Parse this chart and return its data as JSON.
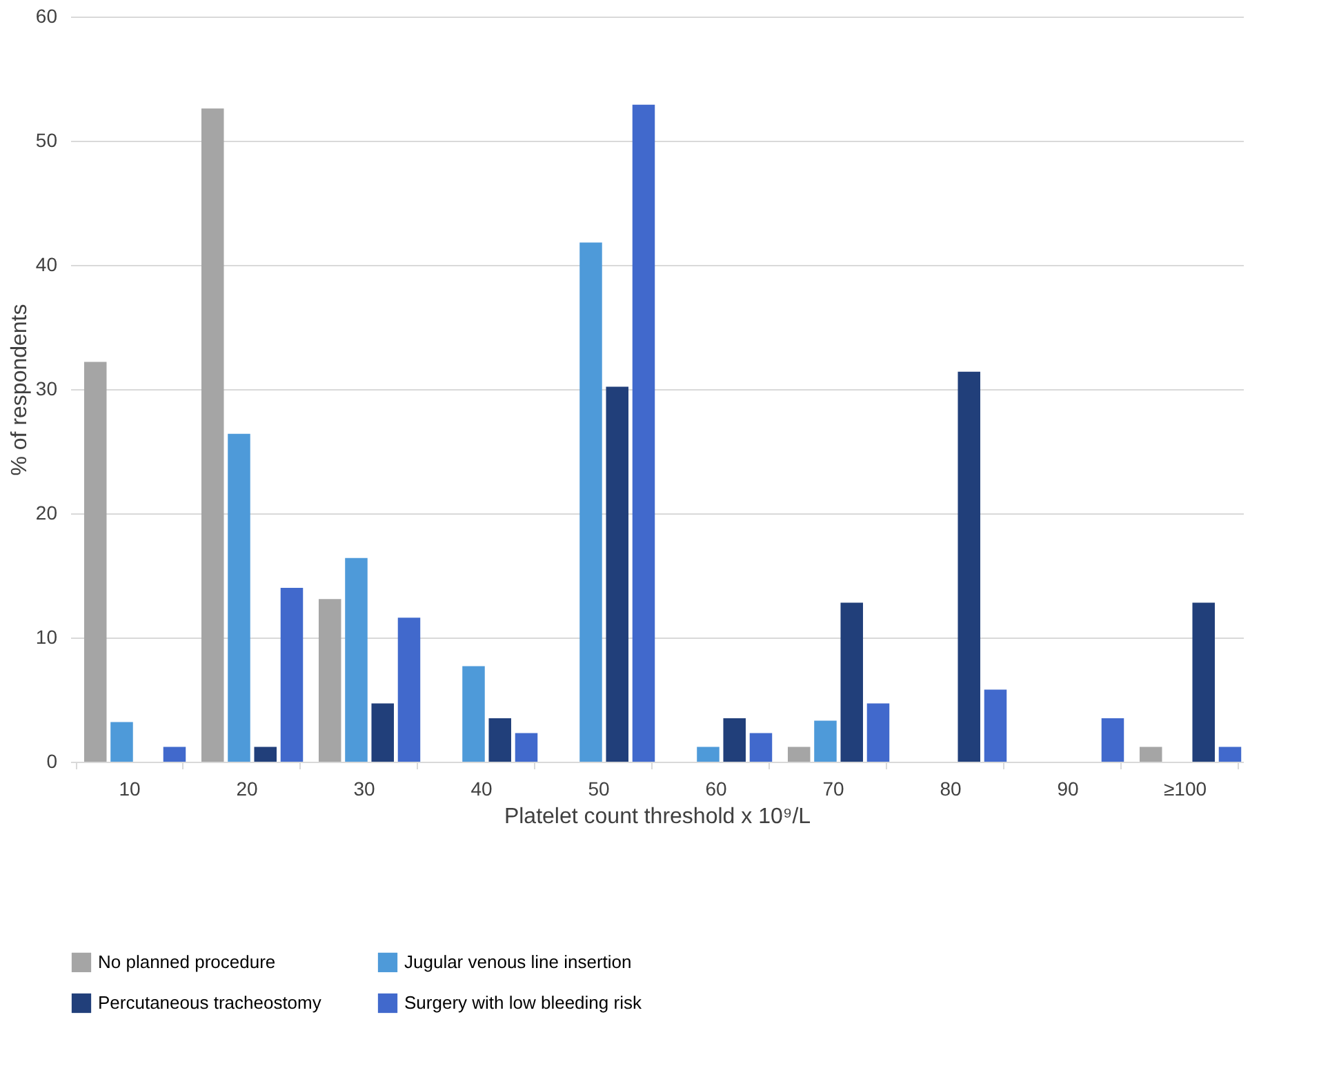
{
  "chart_data": {
    "type": "bar",
    "xlabel": "Platelet count threshold x 10⁹/L",
    "ylabel": "% of respondents",
    "categories": [
      "10",
      "20",
      "30",
      "40",
      "50",
      "60",
      "70",
      "80",
      "90",
      "≥100"
    ],
    "series": [
      {
        "name": "No planned procedure",
        "color": "#a5a5a5",
        "values": [
          32.2,
          52.6,
          13.1,
          0,
          0,
          0,
          1.2,
          0,
          0,
          1.2
        ]
      },
      {
        "name": "Jugular venous line insertion",
        "color": "#4e9ad9",
        "values": [
          3.2,
          26.4,
          16.4,
          7.7,
          41.8,
          1.2,
          3.3,
          0,
          0,
          0
        ]
      },
      {
        "name": "Percutaneous tracheostomy",
        "color": "#213f7a",
        "values": [
          0,
          1.2,
          4.7,
          3.5,
          30.2,
          3.5,
          12.8,
          31.4,
          0,
          12.8
        ]
      },
      {
        "name": "Surgery with low bleeding risk",
        "color": "#4169cc",
        "values": [
          1.2,
          14.0,
          11.6,
          2.3,
          52.9,
          2.3,
          4.7,
          5.8,
          3.5,
          1.2
        ]
      }
    ],
    "ylim": [
      0,
      60
    ],
    "yticks": [
      0,
      10,
      20,
      30,
      40,
      50,
      60
    ],
    "grid": "y",
    "legend": "bottom"
  }
}
